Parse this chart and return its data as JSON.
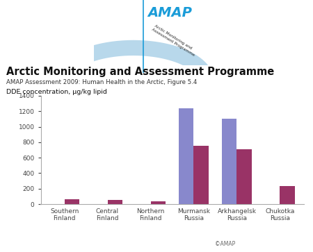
{
  "categories": [
    "Southern\nFinland",
    "Central\nFinland",
    "Northern\nFinland",
    "Murmansk\nRussia",
    "Arkhangelsk\nRussia",
    "Chukotka\nRussia"
  ],
  "series1_values": [
    0,
    0,
    0,
    1240,
    1100,
    0
  ],
  "series2_values": [
    65,
    50,
    40,
    750,
    710,
    230
  ],
  "color1": "#8888cc",
  "color2": "#993366",
  "ylim": [
    0,
    1400
  ],
  "yticks": [
    0,
    200,
    400,
    600,
    800,
    1000,
    1200,
    1400
  ],
  "ylabel": "DDE concentration, μg/kg lipid",
  "title": "Arctic Monitoring and Assessment Programme",
  "subtitle": "AMAP Assessment 2009: Human Health in the Arctic, Figure 5.4",
  "copyright": "©AMAP",
  "amap_text": "AMAP",
  "amap_subtext": "Arctic Monitoring and\nAssessment Programme",
  "arc_color": "#b8d8eb",
  "line_color": "#1a9cd8",
  "bar_width": 0.35,
  "background_color": "#ffffff"
}
